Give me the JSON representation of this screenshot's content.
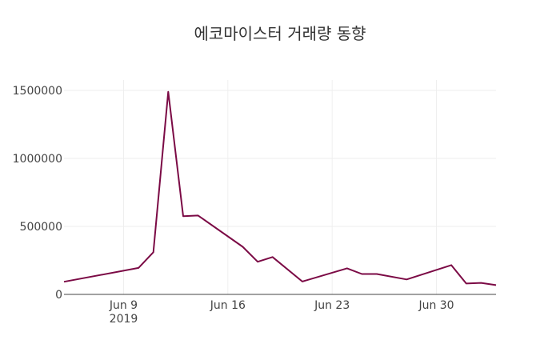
{
  "chart_data": {
    "type": "line",
    "title": "에코마이스터 거래량 동향",
    "xlabel": "",
    "ylabel": "",
    "ylim": [
      0,
      1500000
    ],
    "y_ticks": [
      {
        "value": 0,
        "label": "0"
      },
      {
        "value": 500000,
        "label": "500000"
      },
      {
        "value": 1000000,
        "label": "1000000"
      },
      {
        "value": 1500000,
        "label": "1500000"
      }
    ],
    "x_ticks": [
      {
        "day": 9,
        "label": "Jun 9",
        "sublabel": "2019"
      },
      {
        "day": 16,
        "label": "Jun 16",
        "sublabel": ""
      },
      {
        "day": 23,
        "label": "Jun 23",
        "sublabel": ""
      },
      {
        "day": 30,
        "label": "Jun 30",
        "sublabel": ""
      }
    ],
    "x_range_days": [
      5,
      34
    ],
    "series": [
      {
        "name": "거래량",
        "color": "#7b0a45",
        "points": [
          {
            "day": 5,
            "value": 93000
          },
          {
            "day": 10,
            "value": 195000
          },
          {
            "day": 11,
            "value": 310000
          },
          {
            "day": 12,
            "value": 1490000
          },
          {
            "day": 13,
            "value": 575000
          },
          {
            "day": 14,
            "value": 580000
          },
          {
            "day": 17,
            "value": 350000
          },
          {
            "day": 18,
            "value": 240000
          },
          {
            "day": 19,
            "value": 275000
          },
          {
            "day": 21,
            "value": 95000
          },
          {
            "day": 24,
            "value": 192000
          },
          {
            "day": 25,
            "value": 150000
          },
          {
            "day": 26,
            "value": 150000
          },
          {
            "day": 28,
            "value": 110000
          },
          {
            "day": 31,
            "value": 215000
          },
          {
            "day": 32,
            "value": 80000
          },
          {
            "day": 33,
            "value": 85000
          },
          {
            "day": 34,
            "value": 68000
          }
        ]
      }
    ]
  }
}
